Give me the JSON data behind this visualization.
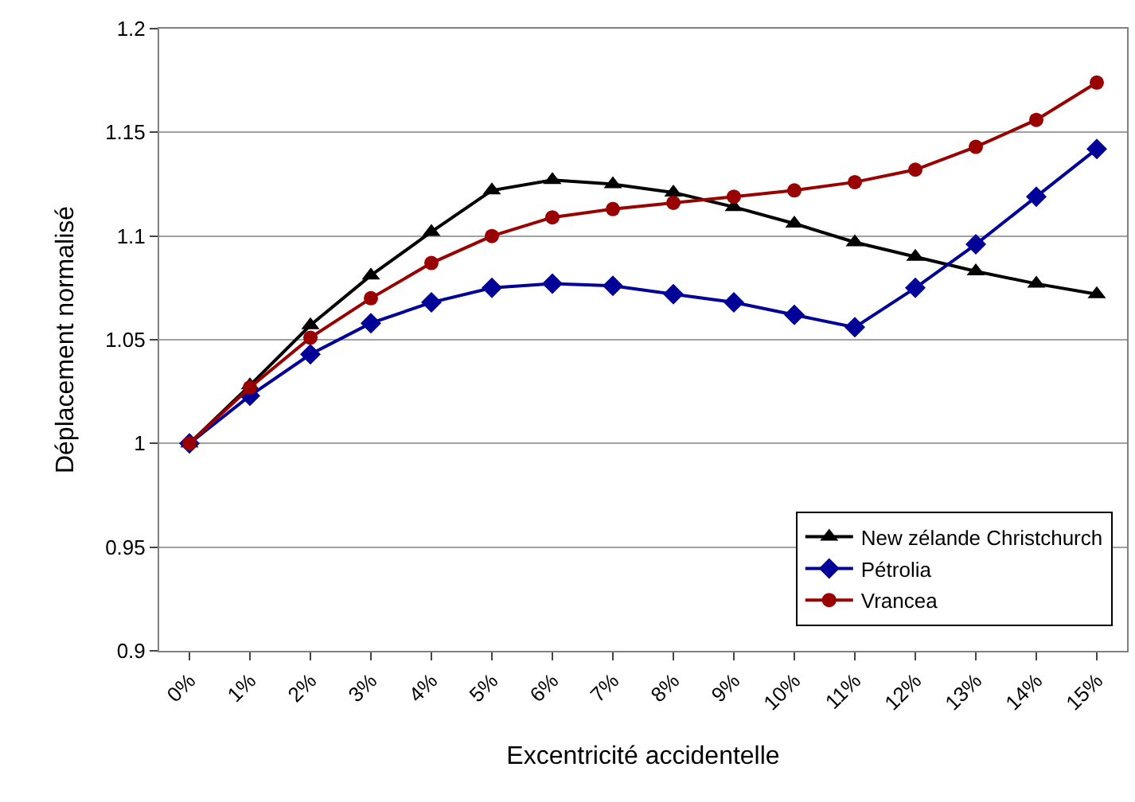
{
  "chart_data": {
    "type": "line",
    "xlabel": "Excentricité accidentelle",
    "ylabel": "Déplacement normalisé",
    "categories": [
      "0%",
      "1%",
      "2%",
      "3%",
      "4%",
      "5%",
      "6%",
      "7%",
      "8%",
      "9%",
      "10%",
      "11%",
      "12%",
      "13%",
      "14%",
      "15%"
    ],
    "series": [
      {
        "name": "New zélande Christchurch",
        "color": "#000000",
        "marker": "triangle",
        "values": [
          1.0,
          1.028,
          1.057,
          1.081,
          1.102,
          1.122,
          1.127,
          1.125,
          1.121,
          1.114,
          1.106,
          1.097,
          1.09,
          1.083,
          1.077,
          1.072
        ]
      },
      {
        "name": "Pétrolia",
        "color": "#000099",
        "marker": "diamond",
        "values": [
          1.0,
          1.023,
          1.043,
          1.058,
          1.068,
          1.075,
          1.077,
          1.076,
          1.072,
          1.068,
          1.062,
          1.056,
          1.075,
          1.096,
          1.119,
          1.142
        ]
      },
      {
        "name": "Vrancea",
        "color": "#990000",
        "marker": "circle",
        "values": [
          1.0,
          1.027,
          1.051,
          1.07,
          1.087,
          1.1,
          1.109,
          1.113,
          1.116,
          1.119,
          1.122,
          1.126,
          1.132,
          1.143,
          1.156,
          1.174
        ]
      }
    ],
    "ylim": [
      0.9,
      1.2
    ],
    "yticks": [
      0.9,
      0.95,
      1,
      1.05,
      1.1,
      1.15,
      1.2
    ],
    "grid": "y",
    "legend": "bottom right",
    "line_style": "solid"
  }
}
